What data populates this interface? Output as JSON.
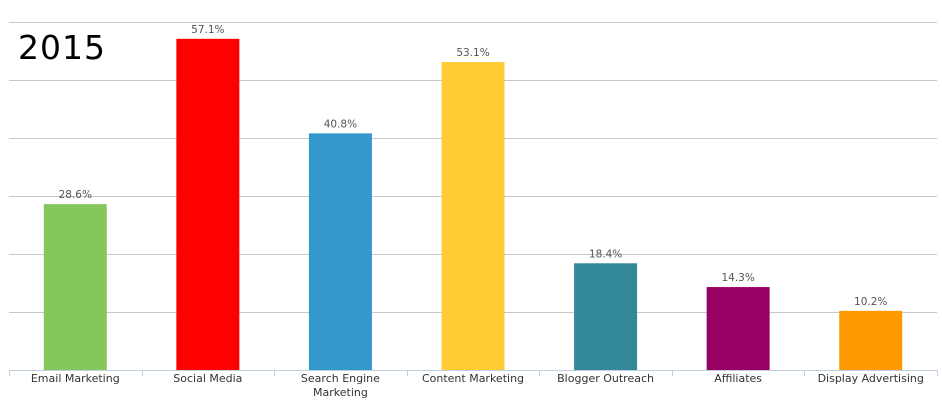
{
  "chart_data": {
    "type": "bar",
    "title": "2015",
    "categories": [
      [
        "Email Marketing"
      ],
      [
        "Social Media"
      ],
      [
        "Search Engine",
        "Marketing"
      ],
      [
        "Content Marketing"
      ],
      [
        "Blogger Outreach"
      ],
      [
        "Affiliates"
      ],
      [
        "Display Advertising"
      ]
    ],
    "values": [
      28.6,
      57.1,
      40.8,
      53.1,
      18.4,
      14.3,
      10.2
    ],
    "value_labels": [
      "28.6%",
      "57.1%",
      "40.8%",
      "53.1%",
      "18.4%",
      "14.3%",
      "10.2%"
    ],
    "colors": [
      "#86c75d",
      "#ff0000",
      "#3399cc",
      "#ffcc33",
      "#338899",
      "#990066",
      "#ff9900"
    ],
    "ylim": [
      0,
      60
    ],
    "gridlines": [
      10,
      20,
      30,
      40,
      50,
      60
    ],
    "grid": true,
    "xlabel": "",
    "ylabel": "",
    "legend": "none"
  }
}
